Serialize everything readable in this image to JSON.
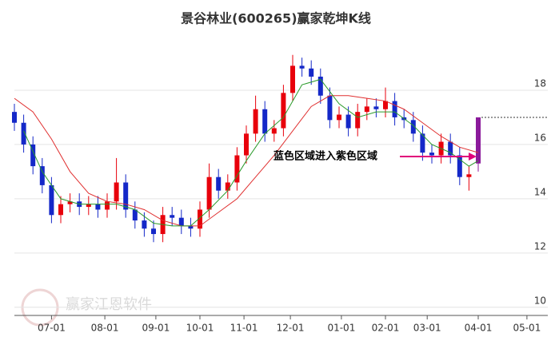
{
  "chart_data": {
    "type": "candlestick",
    "title": "景谷林业(600265)赢家乾坤K线",
    "annotation": "蓝色区域进入紫色区域",
    "watermark": "赢家江恩软件",
    "xlim": [
      0,
      230
    ],
    "xticks": [
      {
        "value": 16,
        "label": "07-01"
      },
      {
        "value": 39,
        "label": "08-01"
      },
      {
        "value": 61,
        "label": "09-01"
      },
      {
        "value": 80,
        "label": "10-01"
      },
      {
        "value": 99,
        "label": "11-01"
      },
      {
        "value": 119,
        "label": "12-01"
      },
      {
        "value": 141,
        "label": "01-01"
      },
      {
        "value": 160,
        "label": "02-01"
      },
      {
        "value": 178,
        "label": "03-01"
      },
      {
        "value": 200,
        "label": "04-01"
      },
      {
        "value": 221,
        "label": "05-01"
      }
    ],
    "ylim": [
      9.7,
      20.0
    ],
    "yticks": [
      10,
      12,
      14,
      16,
      18
    ],
    "grid": true,
    "up_color": "#e8000b",
    "down_color": "#1428c8",
    "last_color": "#8b1a9b",
    "candles": {
      "x": [
        0,
        4,
        8,
        12,
        16,
        20,
        24,
        28,
        32,
        36,
        40,
        44,
        48,
        52,
        56,
        60,
        64,
        68,
        72,
        76,
        80,
        84,
        88,
        92,
        96,
        100,
        104,
        108,
        112,
        116,
        120,
        124,
        128,
        132,
        136,
        140,
        144,
        148,
        152,
        156,
        160,
        164,
        168,
        172,
        176,
        180,
        184,
        188,
        192,
        196,
        200
      ],
      "open": [
        17.2,
        16.8,
        16.0,
        15.2,
        14.5,
        13.4,
        13.8,
        13.9,
        13.7,
        13.8,
        13.6,
        13.9,
        14.6,
        13.6,
        13.2,
        12.9,
        12.7,
        13.4,
        13.3,
        13.0,
        12.9,
        13.6,
        14.8,
        14.3,
        14.6,
        15.6,
        16.4,
        17.3,
        16.4,
        16.6,
        17.9,
        18.9,
        18.8,
        18.5,
        17.8,
        16.9,
        17.1,
        16.6,
        17.2,
        17.4,
        17.3,
        17.6,
        17.0,
        16.9,
        16.4,
        15.7,
        15.6,
        16.1,
        15.6,
        14.8,
        15.3
      ],
      "high": [
        17.5,
        17.1,
        16.3,
        15.5,
        14.8,
        14.1,
        14.2,
        14.2,
        14.1,
        14.1,
        14.2,
        15.5,
        14.9,
        13.9,
        13.5,
        13.2,
        13.7,
        13.7,
        13.6,
        13.3,
        13.9,
        15.3,
        15.1,
        14.9,
        15.9,
        16.7,
        17.8,
        17.6,
        16.9,
        18.2,
        19.3,
        19.2,
        19.1,
        18.8,
        18.1,
        17.4,
        17.4,
        17.5,
        17.7,
        17.7,
        18.1,
        17.9,
        17.3,
        17.2,
        16.7,
        16.0,
        16.4,
        16.4,
        15.9,
        15.2,
        17.0
      ],
      "low": [
        16.5,
        15.7,
        14.9,
        14.2,
        13.1,
        13.1,
        13.5,
        13.4,
        13.4,
        13.3,
        13.3,
        13.6,
        13.3,
        12.9,
        12.6,
        12.4,
        12.4,
        13.0,
        12.7,
        12.6,
        12.6,
        13.3,
        14.0,
        14.0,
        14.3,
        15.3,
        16.1,
        16.1,
        16.1,
        16.3,
        17.6,
        18.5,
        18.2,
        17.5,
        16.6,
        16.6,
        16.3,
        16.3,
        16.9,
        17.0,
        17.0,
        16.7,
        16.6,
        16.1,
        15.4,
        15.3,
        15.3,
        15.3,
        14.5,
        14.3,
        15.0
      ],
      "close": [
        16.8,
        16.0,
        15.2,
        14.5,
        13.4,
        13.8,
        13.9,
        13.7,
        13.8,
        13.6,
        13.9,
        14.6,
        13.6,
        13.2,
        12.9,
        12.7,
        13.4,
        13.3,
        13.0,
        12.9,
        13.6,
        14.8,
        14.3,
        14.6,
        15.6,
        16.4,
        17.3,
        16.4,
        16.6,
        17.9,
        18.9,
        18.8,
        18.5,
        17.8,
        16.9,
        17.1,
        16.6,
        17.2,
        17.4,
        17.3,
        17.6,
        17.0,
        16.9,
        16.4,
        15.7,
        15.6,
        16.1,
        15.6,
        14.8,
        14.9,
        17.0
      ]
    },
    "series": [
      {
        "color": "#e03030",
        "x": [
          0,
          8,
          16,
          24,
          32,
          40,
          48,
          56,
          64,
          72,
          80,
          88,
          96,
          104,
          112,
          120,
          128,
          136,
          144,
          152,
          160,
          168,
          176,
          184,
          192,
          200
        ],
        "values": [
          17.7,
          17.2,
          16.2,
          15.0,
          14.2,
          13.9,
          13.8,
          13.6,
          13.2,
          13.0,
          13.0,
          13.5,
          14.0,
          14.8,
          15.6,
          16.5,
          17.4,
          17.8,
          17.8,
          17.7,
          17.6,
          17.3,
          16.8,
          16.3,
          15.9,
          15.7
        ]
      },
      {
        "color": "#2a9a2a",
        "x": [
          4,
          12,
          20,
          28,
          36,
          44,
          52,
          60,
          68,
          76,
          84,
          92,
          100,
          108,
          116,
          124,
          132,
          140,
          148,
          156,
          164,
          172,
          180,
          188,
          196,
          200
        ],
        "values": [
          16.5,
          15.0,
          14.0,
          13.8,
          13.8,
          13.8,
          13.6,
          13.1,
          13.0,
          13.0,
          13.6,
          14.3,
          15.4,
          16.4,
          17.0,
          18.2,
          18.4,
          17.5,
          17.0,
          17.2,
          17.2,
          16.7,
          16.0,
          15.7,
          15.2,
          15.4
        ]
      }
    ]
  }
}
